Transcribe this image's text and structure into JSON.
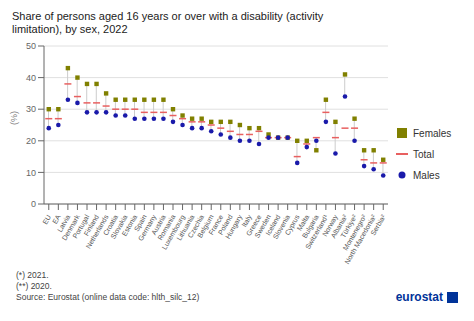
{
  "chart_data": {
    "type": "scatter",
    "title": "Share of persons aged 16 years or over with a disability (activity\nlimitation), by sex, 2022",
    "y_label": "(%)",
    "categories": [
      "EU",
      "EA",
      "Latvia",
      "Denmark",
      "Portugal",
      "Finland",
      "Netherlands",
      "Croatia",
      "Slovakia",
      "Estonia",
      "Spain",
      "Germany",
      "Austria",
      "Romania",
      "Luxembourg",
      "Lithuania",
      "Czechia",
      "Belgium",
      "France",
      "Poland",
      "Hungary",
      "Italy",
      "Greece",
      "Sweden",
      "Iceland",
      "Slovenia",
      "Cyprus",
      "Malta",
      "Bulgaria",
      "Switzerland¹",
      "Norway",
      "Albania²",
      "Türkiye²",
      "Montenegro²",
      "North Macedonia²",
      "Serbia²"
    ],
    "series": [
      {
        "name": "Females",
        "color": "#808000",
        "marker": "square",
        "values": [
          30,
          30,
          43,
          40,
          38,
          38,
          35,
          33,
          33,
          33,
          33,
          33,
          33,
          30,
          28,
          27,
          27,
          26,
          26,
          26,
          25,
          24,
          24,
          22,
          21,
          21,
          20,
          20,
          17,
          33,
          26,
          41,
          27,
          17,
          17,
          14
        ]
      },
      {
        "name": "Total",
        "color": "#e86060",
        "marker": "hline",
        "values": [
          27,
          27,
          38,
          34,
          32,
          32,
          31,
          30,
          30,
          30,
          29,
          29,
          29,
          28,
          27,
          26,
          26,
          25,
          24,
          23,
          22,
          22,
          23,
          21,
          21,
          21,
          15,
          19,
          21,
          29,
          21,
          24,
          24,
          14,
          13,
          13
        ]
      },
      {
        "name": "Males",
        "color": "#1a1aaa",
        "marker": "circle",
        "values": [
          24,
          25,
          33,
          32,
          29,
          29,
          29,
          28,
          28,
          27,
          27,
          27,
          27,
          26,
          25,
          24,
          24,
          23,
          22,
          21,
          20,
          20,
          19,
          21,
          21,
          21,
          13,
          18,
          20,
          26,
          16,
          34,
          20,
          12,
          11,
          9
        ]
      }
    ],
    "ylim": [
      0,
      50
    ],
    "yticks": [
      0,
      10,
      20,
      30,
      40,
      50
    ],
    "grid": true,
    "legend": "right",
    "annotations": [
      "(*) 2021.",
      "(**) 2020.",
      "Source: Eurostat (online data code: hlth_silc_12)",
      "eurostat"
    ]
  }
}
